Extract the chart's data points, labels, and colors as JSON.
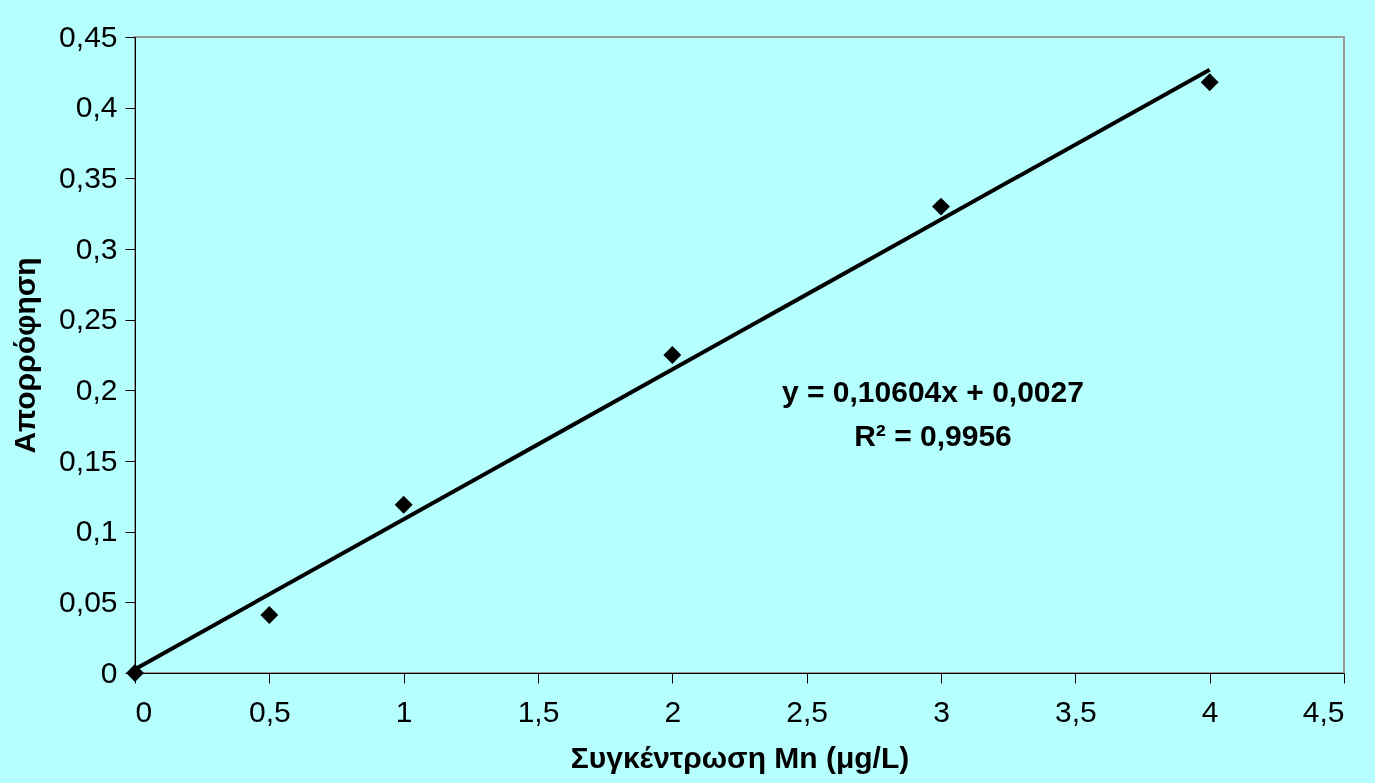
{
  "chart_data": {
    "type": "scatter",
    "xlabel": "Συγκέντρωση Mn (μg/L)",
    "ylabel": "Απορρόφηση",
    "marker": "diamond",
    "grid": false,
    "series": [
      {
        "color": "#000000",
        "x": [
          0,
          0.5,
          1,
          2,
          3,
          4
        ],
        "values": [
          0,
          0.041,
          0.119,
          0.225,
          0.33,
          0.418
        ]
      },
      {
        "type": "line",
        "color": "#000000",
        "marker": "none",
        "x": [
          0,
          4
        ],
        "values": [
          0.0027,
          0.4269
        ]
      }
    ],
    "xlim": [
      0,
      4.5
    ],
    "xticks": [
      0,
      {
        "value": 0.5,
        "label": "0,5"
      },
      1,
      {
        "value": 1.5,
        "label": "1,5"
      },
      2,
      {
        "value": 2.5,
        "label": "2,5"
      },
      3,
      {
        "value": 3.5,
        "label": "3,5"
      },
      4,
      {
        "value": 4.5,
        "label": "4,5"
      }
    ],
    "ylim": [
      0,
      0.45
    ],
    "yticks": [
      0,
      {
        "value": 0.05,
        "label": "0,05"
      },
      {
        "value": 0.1,
        "label": "0,1"
      },
      {
        "value": 0.15,
        "label": "0,15"
      },
      {
        "value": 0.2,
        "label": "0,2"
      },
      {
        "value": 0.25,
        "label": "0,25"
      },
      {
        "value": 0.3,
        "label": "0,3"
      },
      {
        "value": 0.35,
        "label": "0,35"
      },
      {
        "value": 0.4,
        "label": "0,4"
      },
      {
        "value": 0.45,
        "label": "0,45"
      }
    ],
    "annotations": [
      "y = 0,10604x + 0,0027",
      "R² = 0,9956"
    ]
  }
}
